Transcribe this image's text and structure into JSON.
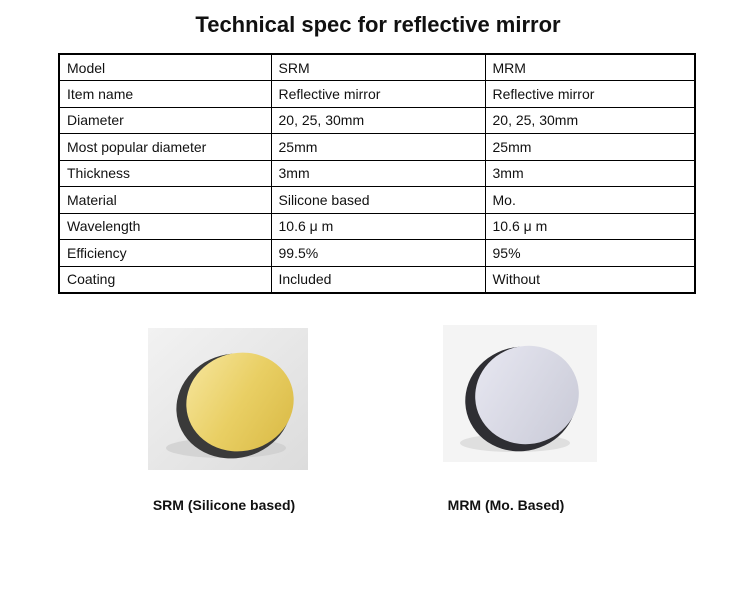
{
  "title": "Technical spec for reflective mirror",
  "table": {
    "rows": [
      [
        "Model",
        "SRM",
        "MRM"
      ],
      [
        "Item name",
        "Reflective mirror",
        "Reflective mirror"
      ],
      [
        "Diameter",
        "20, 25, 30mm",
        "20, 25, 30mm"
      ],
      [
        "Most popular diameter",
        "25mm",
        "25mm"
      ],
      [
        "Thickness",
        "3mm",
        "3mm"
      ],
      [
        "Material",
        "Silicone based",
        "Mo."
      ],
      [
        "Wavelength",
        "10.6 μ m",
        "10.6 μ m"
      ],
      [
        "Efficiency",
        "99.5%",
        "95%"
      ],
      [
        "Coating",
        "Included",
        "Without"
      ]
    ]
  },
  "figures": [
    {
      "caption": "SRM (Silicone based)"
    },
    {
      "caption": "MRM (Mo. Based)"
    }
  ]
}
